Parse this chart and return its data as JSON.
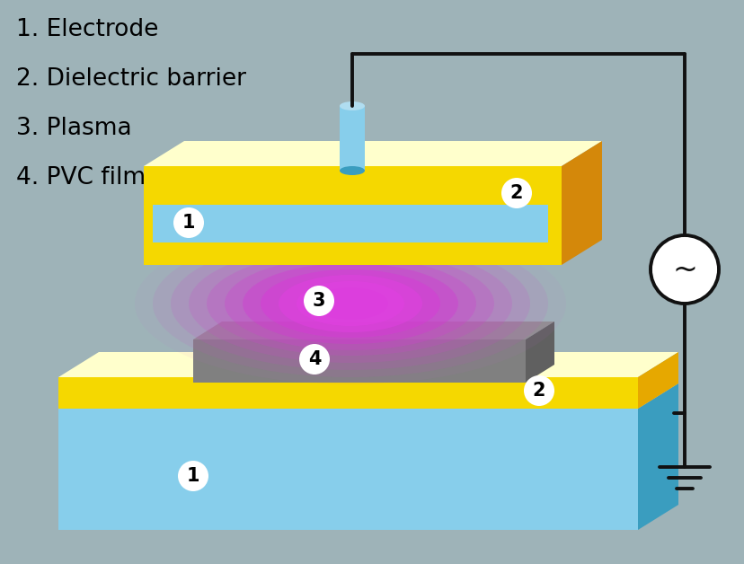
{
  "bg_color": "#9eb3b8",
  "legend_items": [
    "1. Electrode",
    "2. Dielectric barrier",
    "3. Plasma",
    "4. PVC film"
  ],
  "colors": {
    "elec_blue_light": "#87ceeb",
    "elec_blue_mid": "#5bb8d4",
    "elec_blue_dark": "#3a9dbf",
    "dielectric_top": "#ffffcc",
    "dielectric_front": "#f5d800",
    "dielectric_side": "#e6a800",
    "pvc_top": "#909090",
    "pvc_front": "#808080",
    "pvc_side": "#606060",
    "wire_color": "#111111",
    "circle_fill": "#ffffff"
  },
  "figsize": [
    8.29,
    6.28
  ],
  "dpi": 100
}
